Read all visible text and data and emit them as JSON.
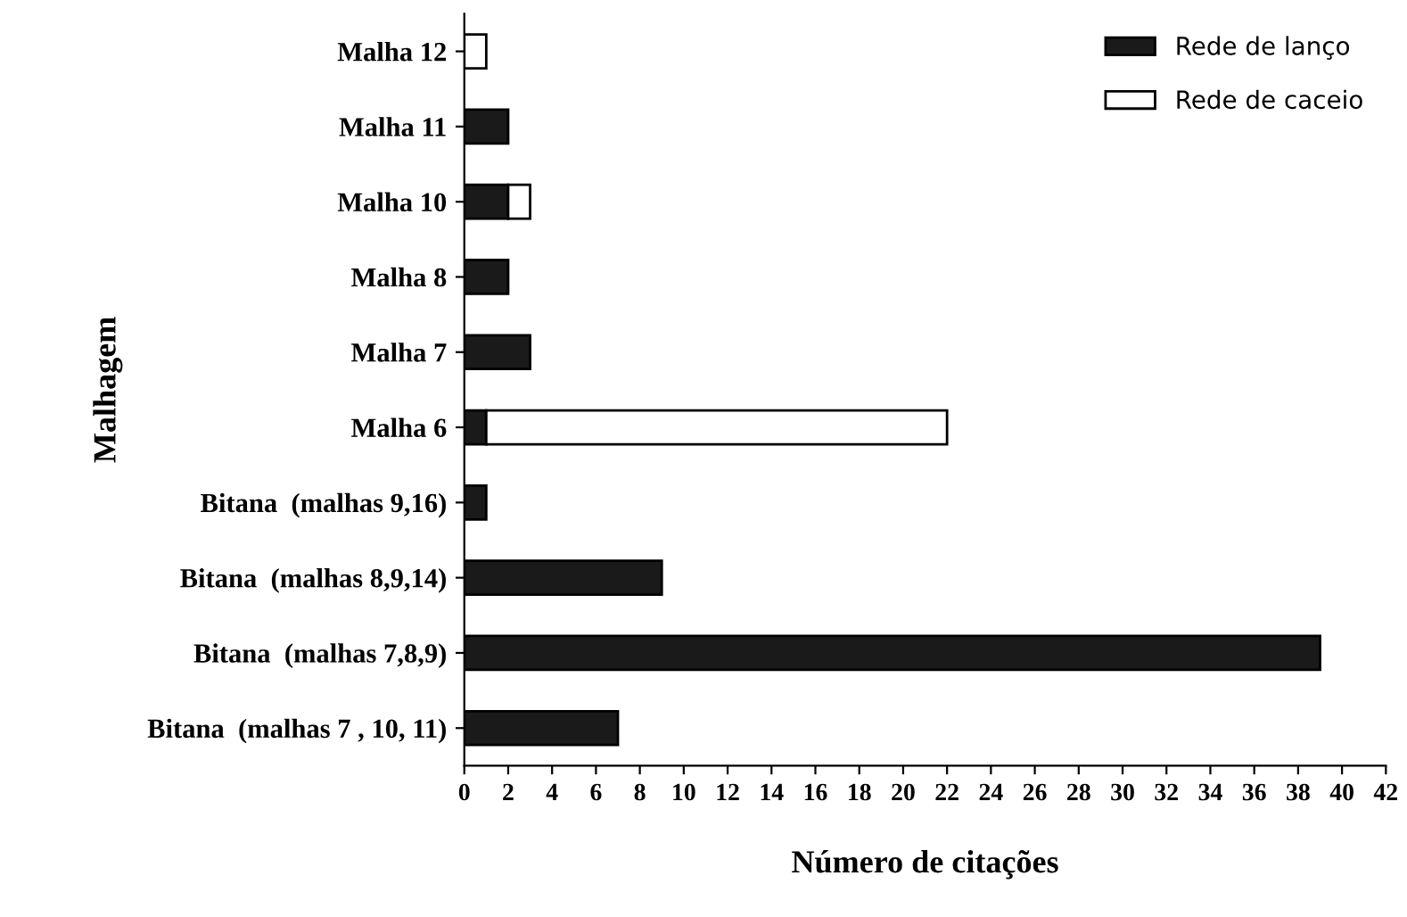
{
  "chart_data": {
    "type": "bar",
    "orientation": "horizontal",
    "stacked": true,
    "xlabel": "Número de citações",
    "ylabel": "Malhagem",
    "categories": [
      "Malha 12",
      "Malha 11",
      "Malha 10",
      "Malha 8",
      "Malha 7",
      "Malha 6",
      "Bitana  (malhas 9,16)",
      "Bitana  (malhas 8,9,14)",
      "Bitana  (malhas 7,8,9)",
      "Bitana  (malhas 7 , 10, 11)"
    ],
    "series": [
      {
        "name": "Rede de lanço",
        "color": "#1a1a1a",
        "values": [
          0,
          2,
          2,
          2,
          3,
          1,
          1,
          9,
          39,
          7
        ]
      },
      {
        "name": "Rede de caceio",
        "color": "#ffffff",
        "values": [
          1,
          0,
          1,
          0,
          0,
          21,
          0,
          0,
          0,
          0
        ]
      }
    ],
    "xlim": [
      0,
      42
    ],
    "xticks": [
      0,
      2,
      4,
      6,
      8,
      10,
      12,
      14,
      16,
      18,
      20,
      22,
      24,
      26,
      28,
      30,
      32,
      34,
      36,
      38,
      40,
      42
    ],
    "grid": false,
    "legend": "top right"
  }
}
